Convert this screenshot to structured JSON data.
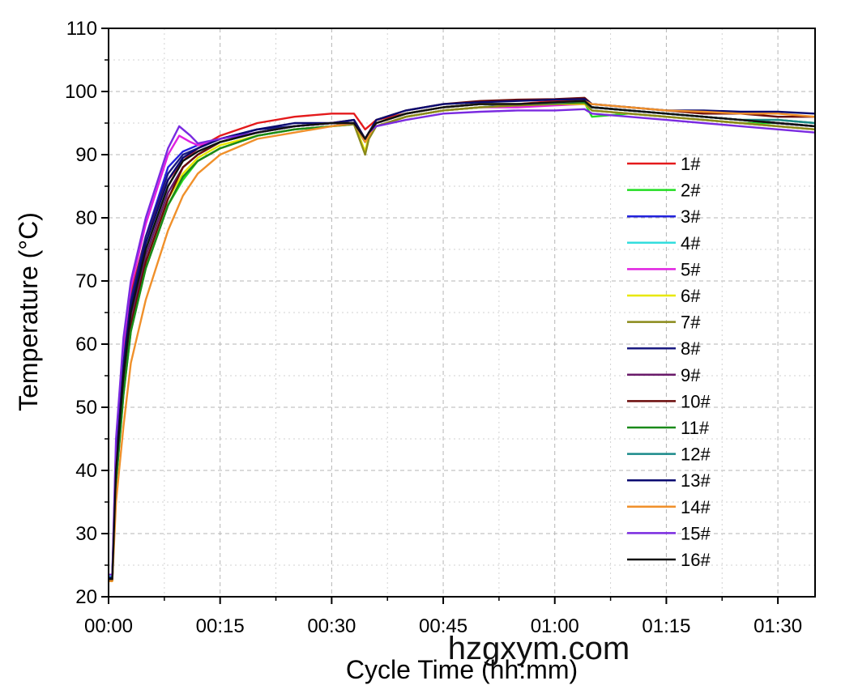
{
  "chart_data": {
    "type": "line",
    "title": "",
    "xlabel": "Cycle Time (hh:mm)",
    "ylabel": "Temperature (°C)",
    "xlim": [
      0,
      95
    ],
    "ylim": [
      20,
      110
    ],
    "x_ticks": [
      {
        "value": 0,
        "label": "00:00"
      },
      {
        "value": 15,
        "label": "00:15"
      },
      {
        "value": 30,
        "label": "00:30"
      },
      {
        "value": 45,
        "label": "00:45"
      },
      {
        "value": 60,
        "label": "01:00"
      },
      {
        "value": 75,
        "label": "01:15"
      },
      {
        "value": 90,
        "label": "01:30"
      }
    ],
    "y_ticks": [
      20,
      30,
      40,
      50,
      60,
      70,
      80,
      90,
      100,
      110
    ],
    "grid": true,
    "legend_position": "right",
    "series": [
      {
        "name": "1#",
        "color": "#e41a1c",
        "x": [
          0,
          0.5,
          1,
          2,
          3,
          5,
          8,
          10,
          12,
          15,
          20,
          25,
          30,
          33,
          34.5,
          35,
          36,
          40,
          45,
          50,
          55,
          60,
          64,
          65,
          70,
          75,
          80,
          85,
          90,
          95
        ],
        "y": [
          22.5,
          22.5,
          42,
          58,
          68,
          77,
          86,
          89,
          91,
          93,
          95,
          96,
          96.5,
          96.5,
          94,
          94.5,
          95.5,
          96.5,
          97.5,
          98,
          98,
          98.5,
          98.5,
          97.5,
          97,
          96.5,
          96,
          95.5,
          95,
          94.5
        ]
      },
      {
        "name": "2#",
        "color": "#22dd22",
        "x": [
          0,
          0.5,
          1,
          2,
          3,
          5,
          8,
          10,
          12,
          15,
          20,
          25,
          30,
          33,
          34.5,
          35,
          36,
          40,
          45,
          50,
          55,
          60,
          64,
          65,
          70,
          75,
          80,
          85,
          90,
          95
        ],
        "y": [
          22.8,
          22.8,
          38,
          52,
          62,
          72,
          82,
          86,
          89,
          91,
          93,
          94,
          94.5,
          94.8,
          92,
          93,
          94.5,
          96,
          97,
          97.5,
          98,
          98,
          98.2,
          96,
          96.5,
          96,
          95.5,
          95,
          95,
          94.5
        ]
      },
      {
        "name": "3#",
        "color": "#2222dd",
        "x": [
          0,
          0.5,
          1,
          2,
          3,
          5,
          8,
          10,
          12,
          15,
          20,
          25,
          30,
          33,
          34.5,
          35,
          36,
          40,
          45,
          50,
          55,
          60,
          64,
          65,
          70,
          75,
          80,
          85,
          90,
          95
        ],
        "y": [
          23,
          23,
          41,
          57,
          67,
          77,
          88,
          90.5,
          91.5,
          92.5,
          94,
          94.5,
          95,
          95,
          92,
          93,
          94.5,
          96,
          97,
          97.5,
          98,
          98,
          98.3,
          97.5,
          97,
          96.5,
          96,
          95.5,
          95,
          94.5
        ]
      },
      {
        "name": "4#",
        "color": "#33dddd",
        "x": [
          0,
          0.5,
          1,
          2,
          3,
          5,
          8,
          10,
          12,
          15,
          20,
          25,
          30,
          33,
          34.5,
          35,
          36,
          40,
          45,
          50,
          55,
          60,
          64,
          65,
          70,
          75,
          80,
          85,
          90,
          95
        ],
        "y": [
          23.2,
          23.2,
          40,
          55,
          65,
          74,
          84,
          88,
          90,
          92,
          93.5,
          94.5,
          95,
          95,
          92.5,
          93.5,
          94.5,
          96,
          97,
          97.5,
          97.8,
          98,
          98,
          97,
          96.5,
          96,
          95.5,
          95,
          94.5,
          94
        ]
      },
      {
        "name": "5#",
        "color": "#e020e0",
        "x": [
          0,
          0.5,
          1,
          2,
          3,
          5,
          8,
          9.5,
          11,
          12,
          15,
          20,
          25,
          30,
          33,
          34.5,
          35,
          36,
          40,
          45,
          50,
          55,
          60,
          64,
          65,
          70,
          75,
          80,
          85,
          90,
          95
        ],
        "y": [
          23,
          23,
          44,
          60,
          69,
          79,
          90,
          93,
          92,
          91.5,
          92.5,
          93.5,
          94.5,
          95,
          95,
          92.5,
          93.5,
          94.5,
          96,
          97,
          97.5,
          97.5,
          97.8,
          98,
          97,
          96.5,
          96,
          95.5,
          95,
          94.5,
          94
        ]
      },
      {
        "name": "6#",
        "color": "#e8e800",
        "x": [
          0,
          0.5,
          1,
          2,
          3,
          5,
          8,
          10,
          12,
          15,
          20,
          25,
          30,
          33,
          34.5,
          35,
          36,
          40,
          45,
          50,
          55,
          60,
          64,
          65,
          70,
          75,
          80,
          85,
          90,
          95
        ],
        "y": [
          22.5,
          22.5,
          40,
          54,
          64,
          73,
          83,
          87,
          89.5,
          91.5,
          93,
          94,
          94.5,
          95,
          90.5,
          93,
          94.5,
          96,
          97,
          97.5,
          97.8,
          98,
          98,
          97,
          96.5,
          96,
          95.5,
          95,
          94.5,
          94
        ]
      },
      {
        "name": "7#",
        "color": "#8a8a1a",
        "x": [
          0,
          0.5,
          1,
          2,
          3,
          5,
          8,
          10,
          12,
          15,
          20,
          25,
          30,
          33,
          34.5,
          35,
          36,
          40,
          45,
          50,
          55,
          60,
          64,
          65,
          70,
          75,
          80,
          85,
          90,
          95
        ],
        "y": [
          22.5,
          22.5,
          39,
          53,
          63,
          72,
          82,
          86.5,
          89,
          91,
          93,
          94,
          94.5,
          94.8,
          90,
          92.5,
          94.5,
          96,
          97,
          97.5,
          97.8,
          98,
          98.2,
          97,
          96.5,
          96,
          95.5,
          95,
          94.5,
          94
        ]
      },
      {
        "name": "8#",
        "color": "#1a1a80",
        "x": [
          0,
          0.5,
          1,
          2,
          3,
          5,
          8,
          10,
          12,
          15,
          20,
          25,
          30,
          33,
          34.5,
          35,
          36,
          40,
          45,
          50,
          55,
          60,
          64,
          65,
          70,
          75,
          80,
          85,
          90,
          95
        ],
        "y": [
          23,
          23,
          41,
          57,
          67,
          77,
          87,
          90,
          91,
          92.5,
          94,
          94.5,
          95,
          95,
          92.5,
          93.5,
          95,
          96.5,
          97.5,
          98,
          98,
          98.3,
          98.5,
          97.5,
          97,
          96.5,
          96,
          95.5,
          95,
          94.5
        ]
      },
      {
        "name": "9#",
        "color": "#6a1a6a",
        "x": [
          0,
          0.5,
          1,
          2,
          3,
          5,
          8,
          10,
          12,
          15,
          20,
          25,
          30,
          33,
          34.5,
          35,
          36,
          40,
          45,
          50,
          55,
          60,
          64,
          65,
          70,
          75,
          80,
          85,
          90,
          95
        ],
        "y": [
          22.8,
          22.8,
          39,
          54,
          64,
          74,
          84,
          88,
          90,
          92,
          93.5,
          94.5,
          95,
          95,
          92.5,
          93.5,
          95,
          96.5,
          97.5,
          98,
          98,
          98.3,
          98.5,
          97.5,
          97,
          96.5,
          96,
          95.5,
          95,
          94.5
        ]
      },
      {
        "name": "10#",
        "color": "#6a0a0a",
        "x": [
          0,
          0.5,
          1,
          2,
          3,
          5,
          8,
          10,
          12,
          15,
          20,
          25,
          30,
          33,
          34.5,
          35,
          36,
          40,
          45,
          50,
          55,
          60,
          64,
          65,
          70,
          75,
          80,
          85,
          90,
          95
        ],
        "y": [
          22.8,
          22.8,
          39,
          53,
          63,
          73,
          83,
          88,
          90,
          92,
          93.5,
          94.5,
          95,
          95.5,
          92.5,
          93.5,
          95.5,
          97,
          98,
          98.5,
          98.7,
          98.8,
          99,
          98,
          97.5,
          97,
          96.5,
          96.5,
          96,
          96
        ]
      },
      {
        "name": "11#",
        "color": "#1a8a1a",
        "x": [
          0,
          0.5,
          1,
          2,
          3,
          5,
          8,
          10,
          12,
          15,
          20,
          25,
          30,
          33,
          34.5,
          35,
          36,
          40,
          45,
          50,
          55,
          60,
          64,
          65,
          70,
          75,
          80,
          85,
          90,
          95
        ],
        "y": [
          22.8,
          22.8,
          38,
          52,
          62,
          72,
          82,
          86.5,
          89,
          91,
          93,
          94,
          94.5,
          95,
          92,
          93.5,
          95,
          96.5,
          97.5,
          98,
          98,
          98.2,
          98.3,
          97.5,
          97,
          96.5,
          96,
          95.5,
          95.5,
          95
        ]
      },
      {
        "name": "12#",
        "color": "#1a8a8a",
        "x": [
          0,
          0.5,
          1,
          2,
          3,
          5,
          8,
          10,
          12,
          15,
          20,
          25,
          30,
          33,
          34.5,
          35,
          36,
          40,
          45,
          50,
          55,
          60,
          64,
          65,
          70,
          75,
          80,
          85,
          90,
          95
        ],
        "y": [
          23,
          23,
          40,
          55,
          65,
          75,
          85,
          89,
          90.5,
          92,
          93.5,
          94.5,
          95,
          95,
          92.5,
          93.5,
          95,
          96.5,
          97.5,
          98,
          98,
          98.2,
          98.5,
          97.5,
          97,
          96.5,
          96,
          95.5,
          95.5,
          95
        ]
      },
      {
        "name": "13#",
        "color": "#0a0a70",
        "x": [
          0,
          0.5,
          1,
          2,
          3,
          5,
          8,
          10,
          12,
          15,
          20,
          25,
          30,
          33,
          34.5,
          35,
          36,
          40,
          45,
          50,
          55,
          60,
          64,
          65,
          70,
          75,
          80,
          85,
          90,
          95
        ],
        "y": [
          23,
          23,
          41,
          56,
          66,
          76,
          86,
          89.5,
          91,
          92.5,
          94,
          95,
          95,
          95.5,
          92.5,
          93.5,
          95.5,
          97,
          98,
          98.3,
          98.5,
          98.7,
          98.8,
          98,
          97.5,
          97,
          97,
          96.8,
          96.8,
          96.5
        ]
      },
      {
        "name": "14#",
        "color": "#f0902a",
        "x": [
          0,
          0.5,
          1,
          2,
          3,
          5,
          8,
          10,
          12,
          15,
          20,
          25,
          30,
          33,
          34.5,
          35,
          36,
          40,
          45,
          50,
          55,
          60,
          64,
          65,
          70,
          75,
          80,
          85,
          90,
          95
        ],
        "y": [
          22.5,
          22.5,
          35,
          47,
          57,
          67,
          78,
          83.5,
          87,
          90,
          92.5,
          93.5,
          94.5,
          95,
          92,
          93,
          95,
          96.5,
          97.5,
          98,
          98,
          98.3,
          98.5,
          98,
          97.5,
          97,
          96.8,
          96.5,
          96.5,
          96
        ]
      },
      {
        "name": "15#",
        "color": "#7a2ae0",
        "x": [
          0,
          0.5,
          1,
          2,
          3,
          5,
          8,
          9.5,
          11,
          12,
          15,
          20,
          25,
          30,
          33,
          34.5,
          35,
          36,
          40,
          45,
          50,
          55,
          60,
          64,
          65,
          70,
          75,
          80,
          85,
          90,
          95
        ],
        "y": [
          23.5,
          23.5,
          45,
          61,
          70,
          80,
          91,
          94.5,
          93,
          91.8,
          92.5,
          93.5,
          94.5,
          95,
          95,
          92.5,
          93.5,
          94.5,
          95.5,
          96.5,
          96.8,
          97,
          97,
          97.2,
          96.5,
          96,
          95.5,
          95,
          94.5,
          94,
          93.5
        ]
      },
      {
        "name": "16#",
        "color": "#111111",
        "x": [
          0,
          0.5,
          1,
          2,
          3,
          5,
          8,
          10,
          12,
          15,
          20,
          25,
          30,
          33,
          34.5,
          35,
          36,
          40,
          45,
          50,
          55,
          60,
          64,
          65,
          70,
          75,
          80,
          85,
          90,
          95
        ],
        "y": [
          22.8,
          22.8,
          40,
          55,
          65,
          75,
          85,
          89,
          90.5,
          92,
          93.5,
          94.5,
          95,
          95,
          92.5,
          93.5,
          95,
          96.5,
          97.5,
          98,
          98,
          98.3,
          98.5,
          97.5,
          97,
          96.5,
          96,
          95.5,
          95,
          94.5
        ]
      }
    ]
  },
  "watermark": "hzgxym.com"
}
